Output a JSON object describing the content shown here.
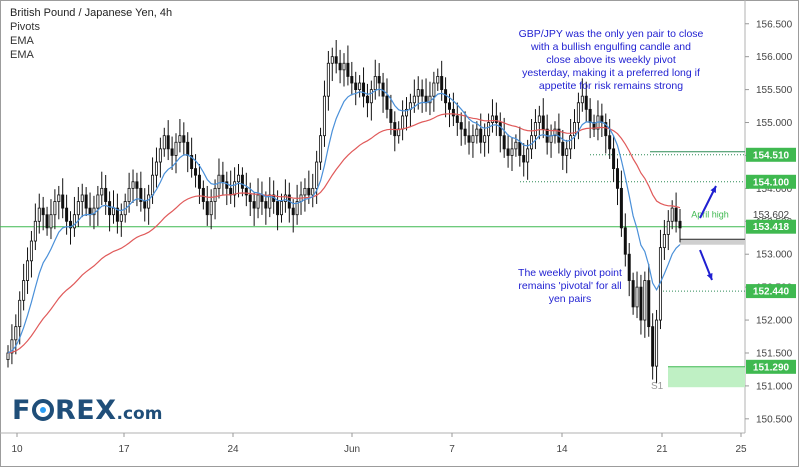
{
  "legend": {
    "title": "British Pound / Japanese Yen, 4h",
    "items": [
      "Pivots",
      "EMA",
      "EMA"
    ]
  },
  "logo": {
    "text_a": "F",
    "text_b": "REX",
    "text_c": ".com"
  },
  "annotations": {
    "top": "GBP/JPY was the only yen pair to close\nwith a bullish engulfing candle and\nclose above its weekly pivot\nyesterday, making it a preferred long if\nappetite for risk remains strong",
    "bottom": "The weekly pivot point\nremains 'pivotal' for all\nyen pairs",
    "april_high": "April high",
    "s1": "S1"
  },
  "colors": {
    "up": "#1a1a1a",
    "down": "#1a1a1a",
    "ema_fast": "#4a90d9",
    "ema_slow": "#e05a5a",
    "pivot_line": "#3fb950",
    "level_line": "#2e8b57",
    "badge_green": "#3fb950",
    "badge_s1_fill": "#bff0c4",
    "annotation": "#1f1fd1",
    "arrow": "#1f1fd1"
  },
  "chart_data": {
    "type": "candlestick",
    "title": "British Pound / Japanese Yen, 4h",
    "x_ticks": [
      "10",
      "17",
      "24",
      "Jun",
      "7",
      "14",
      "21",
      "25"
    ],
    "y_ticks": [
      150.5,
      151.0,
      151.5,
      152.0,
      152.5,
      153.0,
      153.5,
      154.0,
      154.5,
      155.0,
      155.5,
      156.0,
      156.5
    ],
    "y_range": [
      150.3,
      156.8
    ],
    "levels": [
      {
        "value": 154.51,
        "label": "154.510",
        "style": "dotted"
      },
      {
        "value": 154.1,
        "label": "154.100",
        "style": "dotted"
      },
      {
        "value": 153.602,
        "label": "153.602",
        "style": "plain"
      },
      {
        "value": 153.418,
        "label": "153.418",
        "style": "pivot"
      },
      {
        "value": 152.44,
        "label": "152.440",
        "style": "dotted"
      },
      {
        "value": 151.29,
        "label": "151.290",
        "style": "solid-s1"
      }
    ],
    "closes": [
      151.5,
      151.7,
      151.9,
      152.3,
      152.6,
      152.9,
      153.2,
      153.5,
      153.7,
      153.6,
      153.4,
      153.6,
      153.8,
      153.9,
      153.7,
      153.5,
      153.4,
      153.6,
      153.8,
      153.9,
      153.7,
      153.6,
      153.7,
      153.9,
      154.0,
      153.8,
      153.6,
      153.7,
      153.5,
      153.6,
      153.8,
      154.0,
      154.1,
      154.0,
      153.8,
      153.7,
      153.9,
      154.2,
      154.4,
      154.6,
      154.8,
      154.6,
      154.5,
      154.7,
      154.8,
      154.7,
      154.5,
      154.3,
      154.2,
      154.0,
      153.8,
      153.6,
      153.8,
      154.0,
      154.2,
      154.1,
      154.0,
      153.9,
      154.1,
      154.2,
      154.0,
      153.9,
      153.8,
      153.7,
      153.9,
      153.8,
      153.7,
      153.9,
      153.8,
      153.6,
      153.8,
      153.9,
      153.7,
      153.6,
      153.8,
      153.9,
      154.0,
      153.9,
      154.0,
      154.4,
      154.8,
      155.4,
      155.9,
      156.0,
      155.9,
      155.8,
      155.9,
      155.7,
      155.6,
      155.5,
      155.6,
      155.4,
      155.3,
      155.5,
      155.7,
      155.6,
      155.4,
      155.2,
      155.0,
      154.8,
      154.9,
      155.1,
      155.2,
      155.3,
      155.4,
      155.5,
      155.4,
      155.3,
      155.4,
      155.6,
      155.7,
      155.5,
      155.3,
      155.2,
      155.1,
      155.0,
      154.9,
      154.8,
      154.7,
      154.8,
      154.9,
      154.7,
      154.8,
      155.0,
      155.1,
      155.0,
      154.8,
      154.6,
      154.5,
      154.6,
      154.7,
      154.5,
      154.4,
      154.6,
      154.8,
      155.0,
      155.1,
      154.9,
      154.7,
      154.8,
      154.9,
      154.7,
      154.5,
      154.6,
      154.8,
      155.0,
      155.3,
      155.4,
      155.2,
      155.0,
      154.9,
      155.1,
      155.0,
      154.8,
      154.6,
      154.3,
      154.0,
      153.4,
      153.0,
      152.6,
      152.2,
      152.5,
      152.0,
      152.6,
      151.9,
      151.3,
      152.0,
      153.1,
      153.3,
      153.5,
      153.7,
      153.5,
      153.4
    ],
    "ema_fast_note": "EMA overlay (blue)",
    "ema_slow_note": "EMA overlay (red)"
  }
}
